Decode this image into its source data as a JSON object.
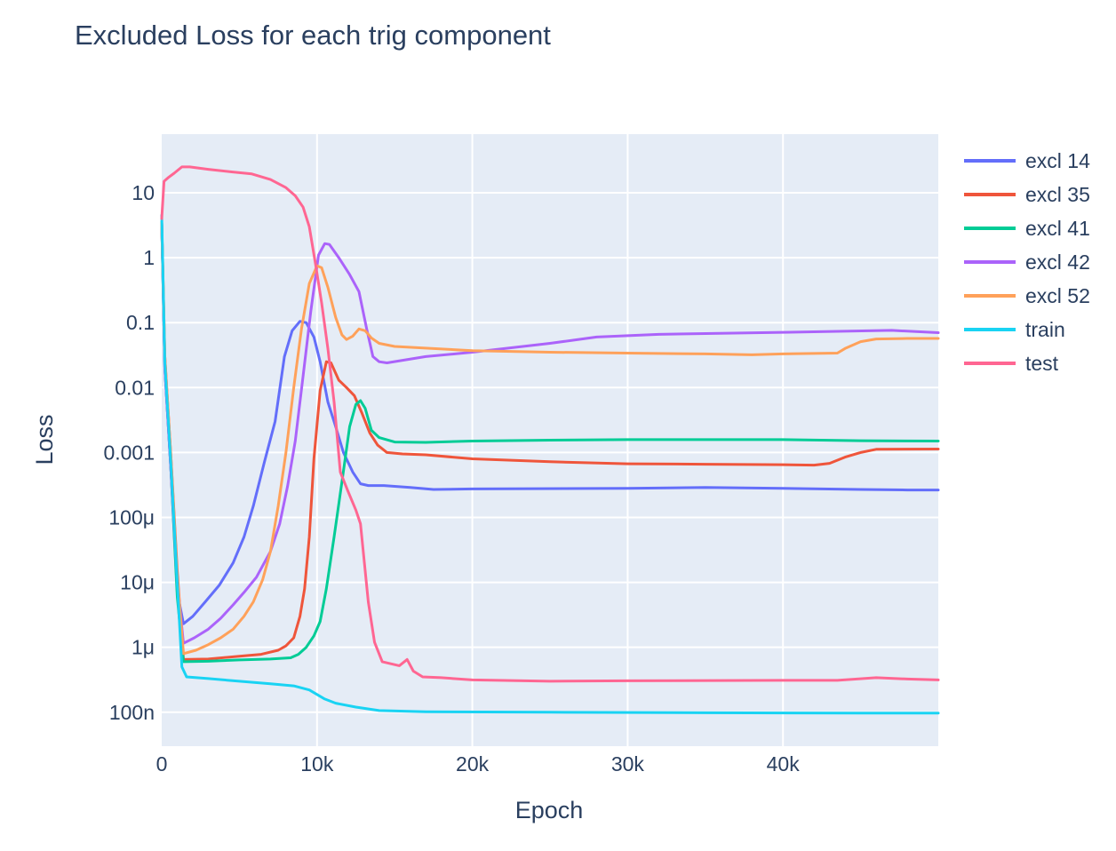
{
  "chart_data": {
    "type": "line",
    "title": "Excluded Loss for each trig component",
    "xlabel": "Epoch",
    "ylabel": "Loss",
    "xlim": [
      0,
      50000
    ],
    "ylim": [
      3e-08,
      80
    ],
    "yscale": "log",
    "grid": true,
    "legend_position": "right",
    "x_ticks": [
      {
        "value": 0,
        "label": "0"
      },
      {
        "value": 10000,
        "label": "10k"
      },
      {
        "value": 20000,
        "label": "20k"
      },
      {
        "value": 30000,
        "label": "30k"
      },
      {
        "value": 40000,
        "label": "40k"
      }
    ],
    "y_ticks": [
      {
        "value": 1e-07,
        "label": "100n"
      },
      {
        "value": 1e-06,
        "label": "1μ"
      },
      {
        "value": 1e-05,
        "label": "10μ"
      },
      {
        "value": 0.0001,
        "label": "100μ"
      },
      {
        "value": 0.001,
        "label": "0.001"
      },
      {
        "value": 0.01,
        "label": "0.01"
      },
      {
        "value": 0.1,
        "label": "0.1"
      },
      {
        "value": 1,
        "label": "1"
      },
      {
        "value": 10,
        "label": "10"
      }
    ],
    "series": [
      {
        "name": "excl 14",
        "color": "#636efa",
        "points": [
          [
            0,
            3.5
          ],
          [
            200,
            0.02
          ],
          [
            600,
            0.0005
          ],
          [
            1000,
            7e-06
          ],
          [
            1400,
            2.3e-06
          ],
          [
            2000,
            3e-06
          ],
          [
            2800,
            5e-06
          ],
          [
            3700,
            9e-06
          ],
          [
            4600,
            2e-05
          ],
          [
            5300,
            5e-05
          ],
          [
            5900,
            0.00015
          ],
          [
            6600,
            0.0007
          ],
          [
            7300,
            0.003
          ],
          [
            7900,
            0.03
          ],
          [
            8400,
            0.075
          ],
          [
            8900,
            0.105
          ],
          [
            9300,
            0.1
          ],
          [
            9800,
            0.06
          ],
          [
            10200,
            0.025
          ],
          [
            10700,
            0.006
          ],
          [
            11200,
            0.0025
          ],
          [
            11700,
            0.001
          ],
          [
            12300,
            0.0005
          ],
          [
            12800,
            0.00033
          ],
          [
            13300,
            0.00031
          ],
          [
            14300,
            0.00031
          ],
          [
            16000,
            0.00029
          ],
          [
            17500,
            0.00027
          ],
          [
            20000,
            0.000275
          ],
          [
            30000,
            0.00028
          ],
          [
            35000,
            0.00029
          ],
          [
            40000,
            0.00028
          ],
          [
            45000,
            0.00027
          ],
          [
            48000,
            0.000265
          ],
          [
            50000,
            0.000265
          ]
        ]
      },
      {
        "name": "excl 35",
        "color": "#ef553b",
        "points": [
          [
            0,
            3.5
          ],
          [
            200,
            0.03
          ],
          [
            600,
            0.0008
          ],
          [
            1000,
            1.5e-05
          ],
          [
            1400,
            6.5e-07
          ],
          [
            3000,
            6.6e-07
          ],
          [
            5000,
            7.3e-07
          ],
          [
            6400,
            7.8e-07
          ],
          [
            7500,
            9e-07
          ],
          [
            8000,
            1.05e-06
          ],
          [
            8500,
            1.4e-06
          ],
          [
            8900,
            3e-06
          ],
          [
            9200,
            8e-06
          ],
          [
            9500,
            5e-05
          ],
          [
            9800,
            0.0008
          ],
          [
            10200,
            0.009
          ],
          [
            10600,
            0.025
          ],
          [
            10900,
            0.024
          ],
          [
            11400,
            0.013
          ],
          [
            11900,
            0.01
          ],
          [
            12400,
            0.0075
          ],
          [
            12900,
            0.004
          ],
          [
            13400,
            0.002
          ],
          [
            13900,
            0.0013
          ],
          [
            14500,
            0.001
          ],
          [
            15500,
            0.00095
          ],
          [
            17000,
            0.00092
          ],
          [
            20000,
            0.0008
          ],
          [
            25000,
            0.00072
          ],
          [
            30000,
            0.00067
          ],
          [
            35000,
            0.00066
          ],
          [
            40000,
            0.00065
          ],
          [
            42000,
            0.00064
          ],
          [
            43000,
            0.00068
          ],
          [
            44000,
            0.00085
          ],
          [
            45000,
            0.001
          ],
          [
            46000,
            0.00112
          ],
          [
            50000,
            0.00113
          ]
        ]
      },
      {
        "name": "excl 41",
        "color": "#00cc96",
        "points": [
          [
            0,
            3.5
          ],
          [
            200,
            0.02
          ],
          [
            600,
            0.0005
          ],
          [
            1000,
            6e-06
          ],
          [
            1400,
            6e-07
          ],
          [
            3000,
            6.1e-07
          ],
          [
            5000,
            6.4e-07
          ],
          [
            7000,
            6.6e-07
          ],
          [
            8300,
            6.9e-07
          ],
          [
            8800,
            7.8e-07
          ],
          [
            9300,
            1e-06
          ],
          [
            9800,
            1.5e-06
          ],
          [
            10200,
            2.5e-06
          ],
          [
            10600,
            8e-06
          ],
          [
            11100,
            5e-05
          ],
          [
            11600,
            0.00035
          ],
          [
            12100,
            0.0025
          ],
          [
            12500,
            0.0055
          ],
          [
            12800,
            0.0063
          ],
          [
            13100,
            0.0048
          ],
          [
            13500,
            0.0022
          ],
          [
            14000,
            0.0017
          ],
          [
            15000,
            0.00145
          ],
          [
            17000,
            0.00143
          ],
          [
            20000,
            0.0015
          ],
          [
            25000,
            0.00155
          ],
          [
            30000,
            0.00158
          ],
          [
            35000,
            0.00158
          ],
          [
            40000,
            0.00158
          ],
          [
            45000,
            0.00152
          ],
          [
            50000,
            0.0015
          ]
        ]
      },
      {
        "name": "excl 42",
        "color": "#ab63fa",
        "points": [
          [
            0,
            3.5
          ],
          [
            200,
            0.02
          ],
          [
            600,
            0.0005
          ],
          [
            1000,
            1e-05
          ],
          [
            1400,
            1.15e-06
          ],
          [
            2100,
            1.4e-06
          ],
          [
            3000,
            1.9e-06
          ],
          [
            3800,
            2.8e-06
          ],
          [
            4600,
            4.5e-06
          ],
          [
            5300,
            7e-06
          ],
          [
            6100,
            1.2e-05
          ],
          [
            7000,
            3e-05
          ],
          [
            7600,
            8e-05
          ],
          [
            8100,
            0.0003
          ],
          [
            8600,
            0.0015
          ],
          [
            9100,
            0.015
          ],
          [
            9600,
            0.15
          ],
          [
            10100,
            1.1
          ],
          [
            10500,
            1.65
          ],
          [
            10800,
            1.6
          ],
          [
            11400,
            1.0
          ],
          [
            12100,
            0.55
          ],
          [
            12700,
            0.3
          ],
          [
            13200,
            0.08
          ],
          [
            13600,
            0.03
          ],
          [
            14000,
            0.025
          ],
          [
            14500,
            0.024
          ],
          [
            17000,
            0.03
          ],
          [
            20000,
            0.035
          ],
          [
            25000,
            0.048
          ],
          [
            28000,
            0.06
          ],
          [
            32000,
            0.066
          ],
          [
            40000,
            0.071
          ],
          [
            47000,
            0.076
          ],
          [
            50000,
            0.07
          ]
        ]
      },
      {
        "name": "excl 52",
        "color": "#ffa15a",
        "points": [
          [
            0,
            3.5
          ],
          [
            200,
            0.03
          ],
          [
            600,
            0.0008
          ],
          [
            1000,
            1.2e-05
          ],
          [
            1400,
            8e-07
          ],
          [
            2200,
            9e-07
          ],
          [
            3000,
            1.1e-06
          ],
          [
            3800,
            1.4e-06
          ],
          [
            4600,
            1.9e-06
          ],
          [
            5300,
            3e-06
          ],
          [
            5900,
            5e-06
          ],
          [
            6500,
            1.1e-05
          ],
          [
            7000,
            3e-05
          ],
          [
            7500,
            0.00015
          ],
          [
            8000,
            0.001
          ],
          [
            8500,
            0.01
          ],
          [
            9000,
            0.08
          ],
          [
            9500,
            0.4
          ],
          [
            10000,
            0.75
          ],
          [
            10300,
            0.7
          ],
          [
            10700,
            0.35
          ],
          [
            11200,
            0.12
          ],
          [
            11600,
            0.065
          ],
          [
            11900,
            0.055
          ],
          [
            12300,
            0.062
          ],
          [
            12700,
            0.08
          ],
          [
            13100,
            0.075
          ],
          [
            13500,
            0.058
          ],
          [
            14000,
            0.048
          ],
          [
            15000,
            0.043
          ],
          [
            20000,
            0.037
          ],
          [
            25000,
            0.035
          ],
          [
            30000,
            0.034
          ],
          [
            35000,
            0.033
          ],
          [
            38000,
            0.032
          ],
          [
            40000,
            0.033
          ],
          [
            43500,
            0.034
          ],
          [
            44000,
            0.04
          ],
          [
            45000,
            0.051
          ],
          [
            46000,
            0.056
          ],
          [
            48000,
            0.057
          ],
          [
            50000,
            0.057
          ]
        ]
      },
      {
        "name": "train",
        "color": "#19d3f3",
        "points": [
          [
            0,
            4.5
          ],
          [
            200,
            0.025
          ],
          [
            600,
            0.0006
          ],
          [
            1000,
            1e-05
          ],
          [
            1300,
            5e-07
          ],
          [
            1600,
            3.5e-07
          ],
          [
            3000,
            3.3e-07
          ],
          [
            5000,
            3e-07
          ],
          [
            7000,
            2.75e-07
          ],
          [
            8500,
            2.55e-07
          ],
          [
            9500,
            2.2e-07
          ],
          [
            10500,
            1.6e-07
          ],
          [
            11200,
            1.38e-07
          ],
          [
            12500,
            1.2e-07
          ],
          [
            14000,
            1.06e-07
          ],
          [
            17000,
            1.02e-07
          ],
          [
            25000,
            1e-07
          ],
          [
            35000,
            9.8e-08
          ],
          [
            45000,
            9.7e-08
          ],
          [
            50000,
            9.7e-08
          ]
        ]
      },
      {
        "name": "test",
        "color": "#ff6692",
        "points": [
          [
            0,
            4
          ],
          [
            150,
            15
          ],
          [
            400,
            17
          ],
          [
            800,
            20
          ],
          [
            1300,
            25
          ],
          [
            1800,
            25
          ],
          [
            3000,
            23
          ],
          [
            4500,
            21
          ],
          [
            5800,
            19.5
          ],
          [
            7000,
            16
          ],
          [
            8000,
            12
          ],
          [
            8600,
            9
          ],
          [
            9100,
            6
          ],
          [
            9500,
            3
          ],
          [
            9900,
            0.8
          ],
          [
            10300,
            0.2
          ],
          [
            10700,
            0.04
          ],
          [
            11100,
            0.006
          ],
          [
            11500,
            0.0005
          ],
          [
            12000,
            0.00025
          ],
          [
            12500,
            0.00013
          ],
          [
            12800,
            8e-05
          ],
          [
            13300,
            5e-06
          ],
          [
            13700,
            1.2e-06
          ],
          [
            14200,
            6e-07
          ],
          [
            15300,
            5.2e-07
          ],
          [
            15800,
            6.5e-07
          ],
          [
            16200,
            4.3e-07
          ],
          [
            16800,
            3.5e-07
          ],
          [
            18000,
            3.4e-07
          ],
          [
            20000,
            3.15e-07
          ],
          [
            25000,
            3e-07
          ],
          [
            30000,
            3.05e-07
          ],
          [
            40000,
            3.1e-07
          ],
          [
            43500,
            3.1e-07
          ],
          [
            46000,
            3.4e-07
          ],
          [
            48000,
            3.25e-07
          ],
          [
            50000,
            3.15e-07
          ]
        ]
      }
    ]
  }
}
